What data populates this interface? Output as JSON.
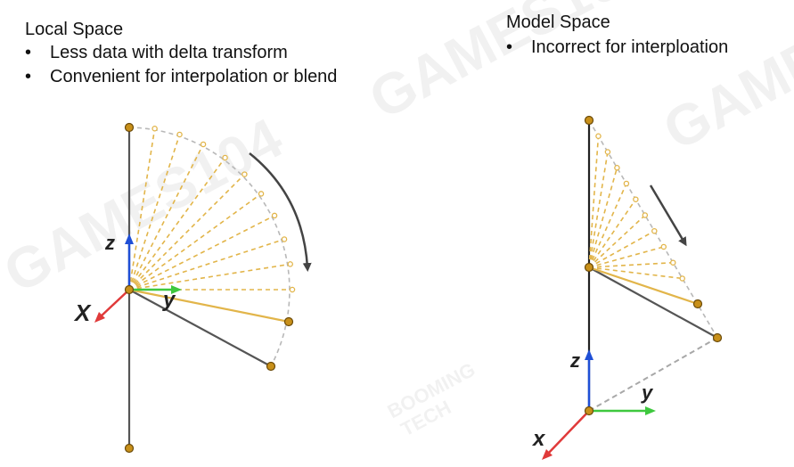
{
  "local": {
    "title": "Local Space",
    "bullets": [
      "Less data with delta transform",
      "Convenient for interpolation or blend"
    ],
    "axes": {
      "z": "z",
      "x": "X",
      "y": "y"
    }
  },
  "model": {
    "title": "Model Space",
    "bullets": [
      "Incorrect for interploation"
    ],
    "axes": {
      "z": "z",
      "x": "x",
      "y": "y"
    }
  },
  "watermark": {
    "brand": "GAMES104",
    "studio_top": "BOOMING",
    "studio_bottom": "TECH"
  },
  "colors": {
    "bone": "#555555",
    "joint_fill": "#c8901a",
    "joint_stroke": "#6b4a08",
    "interp": "#e2b54a",
    "arc": "#b8b8b8",
    "rot_arrow": "#444444",
    "axis_z": "#1f4fd6",
    "axis_y": "#3ec83e",
    "axis_x": "#e03a3a"
  }
}
